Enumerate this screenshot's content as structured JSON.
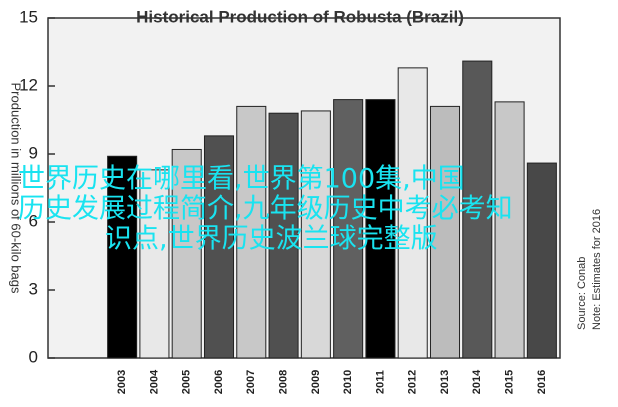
{
  "chart_data": {
    "type": "bar",
    "title": "Historical Production of Robusta (Brazil)",
    "ylabel": "Production in millions of 60-kilo bags",
    "source": "Source: Conab",
    "note": "Note: Estimates for 2016",
    "overlay_text": [
      "世界历史在哪里看,世界第100集,中国",
      "历史发展过程简介,九年级历史中考必考知",
      "识点,世界历史波兰球完整版"
    ],
    "categories": [
      "2003",
      "2004",
      "2005",
      "2006",
      "2007",
      "2008",
      "2009",
      "2010",
      "2011",
      "2012",
      "2013",
      "2014",
      "2015",
      "2016"
    ],
    "values": [
      8.9,
      8.3,
      9.2,
      9.8,
      11.1,
      10.8,
      10.9,
      11.4,
      11.4,
      12.8,
      11.1,
      13.1,
      11.3,
      8.6
    ],
    "colors": [
      "#000000",
      "#e8e8e8",
      "#c8c8c8",
      "#505050",
      "#c8c8c8",
      "#505050",
      "#d8d8d8",
      "#606060",
      "#000000",
      "#e8e8e8",
      "#bcbcbc",
      "#585858",
      "#c8c8c8",
      "#484848"
    ],
    "ylim": [
      0,
      15
    ],
    "yticks": [
      0,
      3,
      6,
      9,
      12,
      15
    ]
  }
}
